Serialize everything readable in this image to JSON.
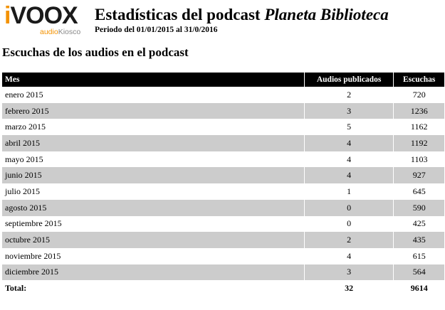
{
  "brand": {
    "logo_i": "i",
    "logo_rest": "VOOX",
    "sub_audio": "audio",
    "sub_kiosco": "Kiosco"
  },
  "header": {
    "title_prefix": "Estadísticas del podcast ",
    "title_podcast": "Planeta Biblioteca",
    "period": "Periodo del 01/01/2015 al 31/0/2016"
  },
  "section_title": "Escuchas de los audios en el podcast",
  "table": {
    "columns": [
      "Mes",
      "Audios publicados",
      "Escuchas"
    ],
    "rows": [
      {
        "mes": "enero 2015",
        "audios": "2",
        "escuchas": "720"
      },
      {
        "mes": "febrero 2015",
        "audios": "3",
        "escuchas": "1236"
      },
      {
        "mes": "marzo 2015",
        "audios": "5",
        "escuchas": "1162"
      },
      {
        "mes": "abril 2015",
        "audios": "4",
        "escuchas": "1192"
      },
      {
        "mes": "mayo 2015",
        "audios": "4",
        "escuchas": "1103"
      },
      {
        "mes": "junio 2015",
        "audios": "4",
        "escuchas": "927"
      },
      {
        "mes": "julio 2015",
        "audios": "1",
        "escuchas": "645"
      },
      {
        "mes": "agosto 2015",
        "audios": "0",
        "escuchas": "590"
      },
      {
        "mes": "septiembre 2015",
        "audios": "0",
        "escuchas": "425"
      },
      {
        "mes": "octubre 2015",
        "audios": "2",
        "escuchas": "435"
      },
      {
        "mes": "noviembre 2015",
        "audios": "4",
        "escuchas": "615"
      },
      {
        "mes": "diciembre 2015",
        "audios": "3",
        "escuchas": "564"
      }
    ],
    "total": {
      "label": "Total:",
      "audios": "32",
      "escuchas": "9614"
    }
  }
}
